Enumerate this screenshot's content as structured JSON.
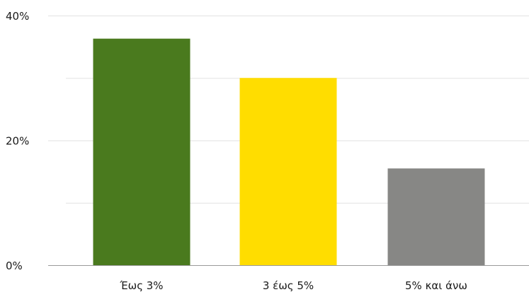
{
  "chart_data": {
    "type": "bar",
    "categories": [
      "Έως 3%",
      "3 έως 5%",
      "5% και άνω"
    ],
    "values": [
      36.3,
      30.0,
      15.5
    ],
    "colors": [
      "#4a7a1e",
      "#ffdd00",
      "#878785"
    ],
    "ylim": [
      0,
      40
    ],
    "major_ticks": [
      {
        "value": 0,
        "label": "0%"
      },
      {
        "value": 20,
        "label": "20%"
      },
      {
        "value": 40,
        "label": "40%"
      }
    ],
    "minor_gridlines": [
      10,
      30
    ],
    "grid": true,
    "axis_color": "#9a9a9a",
    "grid_color": "#e2e2e2"
  }
}
